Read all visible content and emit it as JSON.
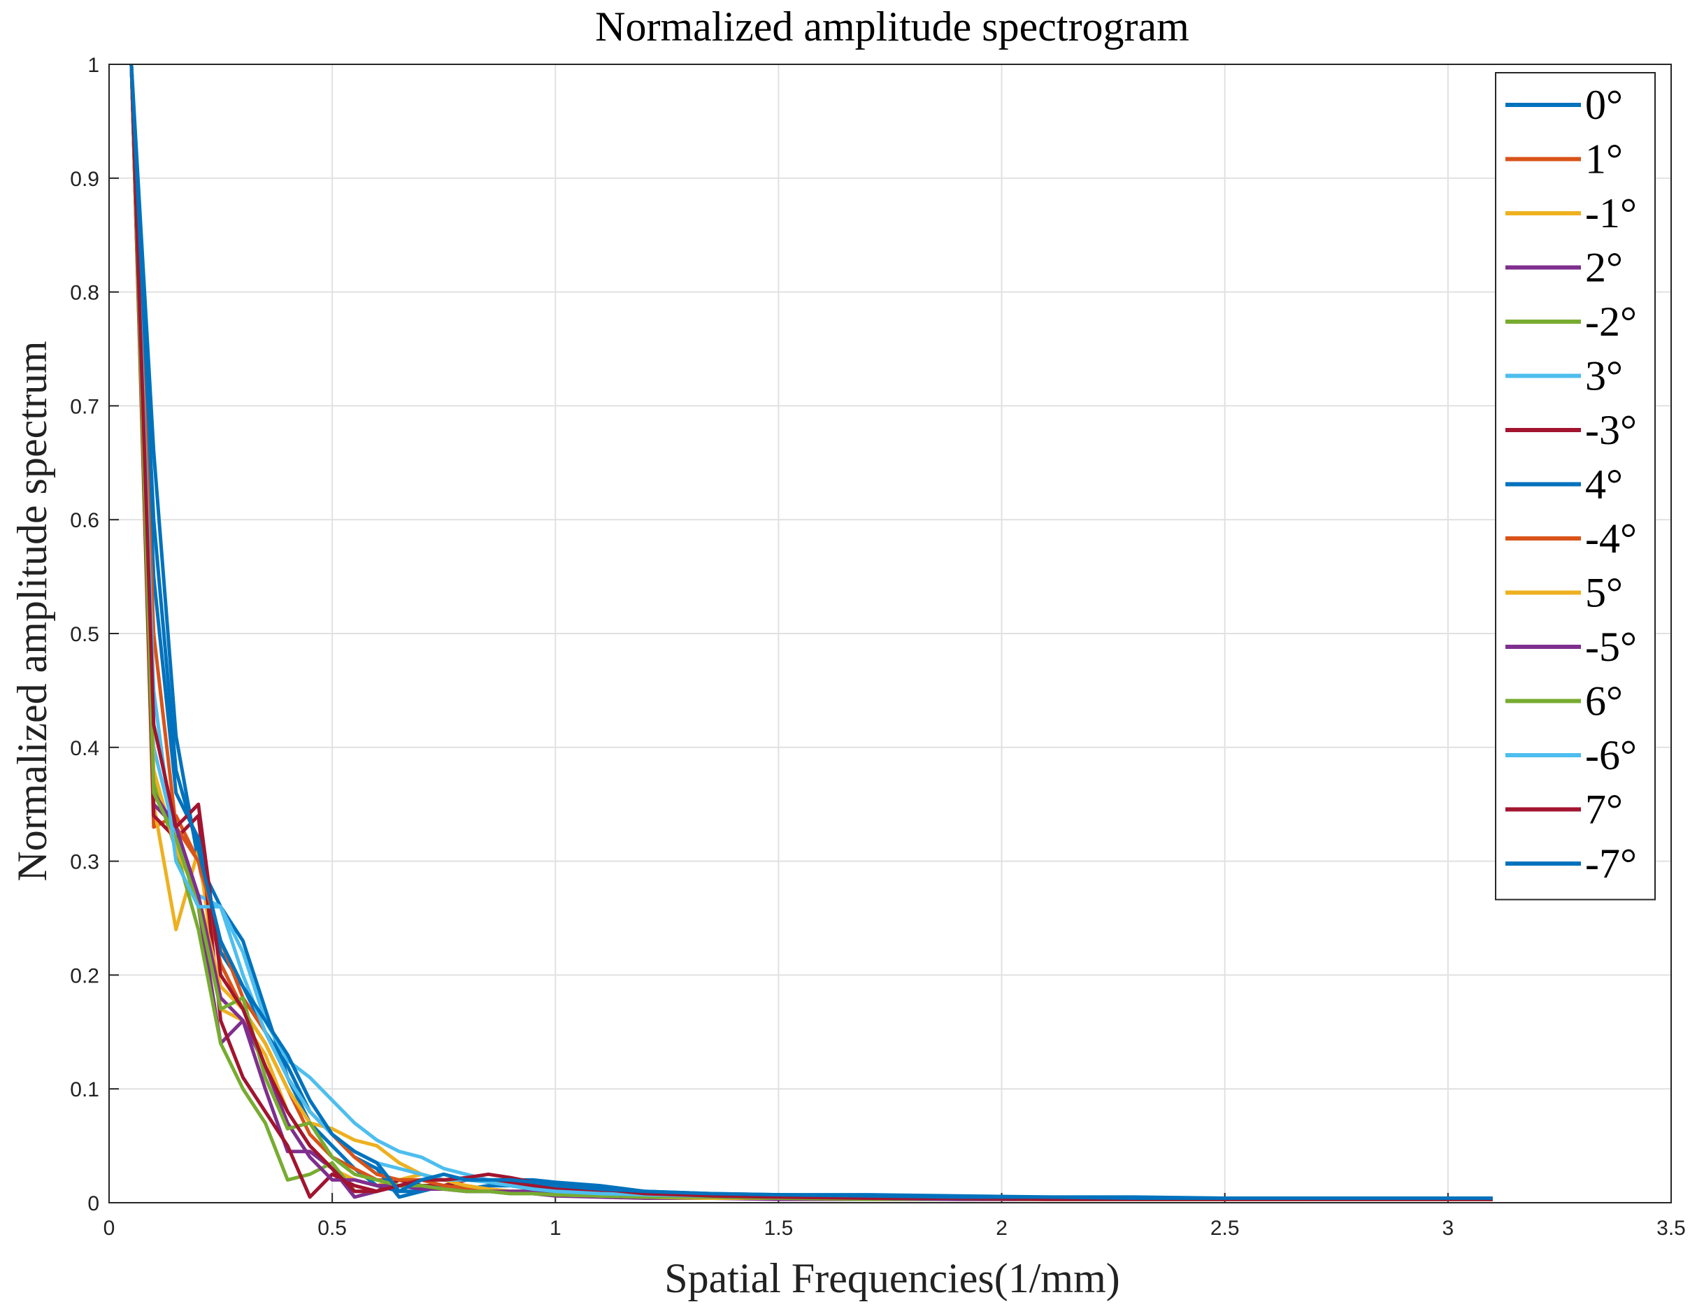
{
  "chart_data": {
    "type": "line",
    "title": "Normalized amplitude spectrogram",
    "xlabel": "Spatial Frequencies(1/mm)",
    "ylabel": "Normalized amplitude spectrum",
    "xlim": [
      0,
      3.5
    ],
    "ylim": [
      0,
      1
    ],
    "xticks": [
      0,
      0.5,
      1,
      1.5,
      2,
      2.5,
      3,
      3.5
    ],
    "yticks": [
      0,
      0.1,
      0.2,
      0.3,
      0.4,
      0.5,
      0.6,
      0.7,
      0.8,
      0.9,
      1
    ],
    "xtick_labels": [
      "0",
      "0.5",
      "1",
      "1.5",
      "2",
      "2.5",
      "3",
      "3.5"
    ],
    "ytick_labels": [
      "0",
      "0.1",
      "0.2",
      "0.3",
      "0.4",
      "0.5",
      "0.6",
      "0.7",
      "0.8",
      "0.9",
      "1"
    ],
    "grid": true,
    "legend_position": "top-right",
    "x": [
      0.05,
      0.1,
      0.15,
      0.2,
      0.25,
      0.3,
      0.35,
      0.4,
      0.45,
      0.5,
      0.55,
      0.6,
      0.65,
      0.7,
      0.75,
      0.8,
      0.85,
      0.9,
      0.95,
      1.0,
      1.1,
      1.2,
      1.35,
      1.5,
      1.7,
      1.9,
      2.1,
      2.3,
      2.5,
      2.7,
      2.9,
      3.1
    ],
    "series": [
      {
        "name": "0°",
        "color": "#0072BD",
        "values": [
          1.0,
          0.66,
          0.41,
          0.3,
          0.26,
          0.23,
          0.17,
          0.11,
          0.07,
          0.05,
          0.03,
          0.015,
          0.01,
          0.01,
          0.015,
          0.02,
          0.02,
          0.02,
          0.02,
          0.018,
          0.015,
          0.01,
          0.008,
          0.007,
          0.007,
          0.006,
          0.005,
          0.005,
          0.004,
          0.004,
          0.004,
          0.004
        ]
      },
      {
        "name": "1°",
        "color": "#D95319",
        "values": [
          1.0,
          0.33,
          0.34,
          0.3,
          0.21,
          0.17,
          0.14,
          0.1,
          0.06,
          0.04,
          0.03,
          0.02,
          0.02,
          0.015,
          0.015,
          0.015,
          0.012,
          0.01,
          0.01,
          0.01,
          0.008,
          0.006,
          0.005,
          0.005,
          0.004,
          0.004,
          0.004,
          0.003,
          0.003,
          0.003,
          0.003,
          0.003
        ]
      },
      {
        "name": "-1°",
        "color": "#EDB120",
        "values": [
          1.0,
          0.35,
          0.24,
          0.31,
          0.17,
          0.16,
          0.13,
          0.08,
          0.05,
          0.03,
          0.02,
          0.015,
          0.02,
          0.025,
          0.02,
          0.015,
          0.01,
          0.01,
          0.008,
          0.008,
          0.006,
          0.005,
          0.004,
          0.004,
          0.004,
          0.003,
          0.003,
          0.003,
          0.003,
          0.003,
          0.003,
          0.003
        ]
      },
      {
        "name": "2°",
        "color": "#7E2F8E",
        "values": [
          1.0,
          0.35,
          0.33,
          0.26,
          0.14,
          0.16,
          0.1,
          0.045,
          0.045,
          0.03,
          0.005,
          0.01,
          0.015,
          0.015,
          0.012,
          0.01,
          0.01,
          0.008,
          0.008,
          0.006,
          0.005,
          0.004,
          0.004,
          0.003,
          0.003,
          0.003,
          0.003,
          0.003,
          0.003,
          0.003,
          0.003,
          0.003
        ]
      },
      {
        "name": "-2°",
        "color": "#77AC30",
        "values": [
          1.0,
          0.37,
          0.31,
          0.24,
          0.14,
          0.1,
          0.07,
          0.02,
          0.025,
          0.035,
          0.01,
          0.01,
          0.02,
          0.015,
          0.015,
          0.012,
          0.01,
          0.01,
          0.008,
          0.008,
          0.006,
          0.005,
          0.004,
          0.004,
          0.003,
          0.003,
          0.003,
          0.003,
          0.003,
          0.003,
          0.003,
          0.003
        ]
      },
      {
        "name": "3°",
        "color": "#4DBEEE",
        "values": [
          1.0,
          0.4,
          0.32,
          0.27,
          0.26,
          0.22,
          0.16,
          0.125,
          0.11,
          0.09,
          0.07,
          0.055,
          0.045,
          0.04,
          0.03,
          0.025,
          0.02,
          0.015,
          0.012,
          0.01,
          0.008,
          0.007,
          0.006,
          0.005,
          0.005,
          0.004,
          0.004,
          0.004,
          0.004,
          0.004,
          0.004,
          0.004
        ]
      },
      {
        "name": "-3°",
        "color": "#A2142F",
        "values": [
          1.0,
          0.34,
          0.32,
          0.34,
          0.16,
          0.11,
          0.08,
          0.05,
          0.005,
          0.025,
          0.015,
          0.01,
          0.02,
          0.015,
          0.015,
          0.02,
          0.02,
          0.018,
          0.015,
          0.012,
          0.01,
          0.008,
          0.006,
          0.005,
          0.005,
          0.004,
          0.004,
          0.004,
          0.003,
          0.003,
          0.003,
          0.003
        ]
      },
      {
        "name": "4°",
        "color": "#0072BD",
        "values": [
          1.0,
          0.55,
          0.36,
          0.32,
          0.22,
          0.19,
          0.15,
          0.12,
          0.08,
          0.06,
          0.04,
          0.03,
          0.005,
          0.01,
          0.015,
          0.012,
          0.015,
          0.015,
          0.012,
          0.01,
          0.008,
          0.007,
          0.006,
          0.005,
          0.005,
          0.004,
          0.004,
          0.004,
          0.004,
          0.003,
          0.003,
          0.003
        ]
      },
      {
        "name": "-4°",
        "color": "#D95319",
        "values": [
          1.0,
          0.5,
          0.33,
          0.3,
          0.23,
          0.18,
          0.15,
          0.11,
          0.08,
          0.06,
          0.04,
          0.025,
          0.02,
          0.02,
          0.015,
          0.012,
          0.012,
          0.01,
          0.01,
          0.008,
          0.007,
          0.006,
          0.005,
          0.004,
          0.004,
          0.004,
          0.003,
          0.003,
          0.003,
          0.003,
          0.003,
          0.003
        ]
      },
      {
        "name": "5°",
        "color": "#EDB120",
        "values": [
          1.0,
          0.38,
          0.31,
          0.27,
          0.19,
          0.17,
          0.14,
          0.1,
          0.07,
          0.065,
          0.055,
          0.05,
          0.035,
          0.025,
          0.02,
          0.015,
          0.012,
          0.01,
          0.008,
          0.007,
          0.006,
          0.005,
          0.004,
          0.004,
          0.004,
          0.003,
          0.003,
          0.003,
          0.003,
          0.003,
          0.003,
          0.003
        ]
      },
      {
        "name": "-5°",
        "color": "#7E2F8E",
        "values": [
          1.0,
          0.36,
          0.33,
          0.27,
          0.18,
          0.16,
          0.12,
          0.07,
          0.04,
          0.02,
          0.02,
          0.015,
          0.015,
          0.012,
          0.012,
          0.01,
          0.01,
          0.01,
          0.01,
          0.01,
          0.008,
          0.006,
          0.005,
          0.004,
          0.004,
          0.003,
          0.003,
          0.003,
          0.003,
          0.003,
          0.003,
          0.003
        ]
      },
      {
        "name": "6°",
        "color": "#77AC30",
        "values": [
          1.0,
          0.36,
          0.32,
          0.26,
          0.17,
          0.18,
          0.11,
          0.065,
          0.07,
          0.04,
          0.025,
          0.02,
          0.015,
          0.015,
          0.012,
          0.01,
          0.01,
          0.008,
          0.008,
          0.007,
          0.006,
          0.005,
          0.005,
          0.004,
          0.004,
          0.004,
          0.003,
          0.003,
          0.003,
          0.003,
          0.003,
          0.003
        ]
      },
      {
        "name": "-6°",
        "color": "#4DBEEE",
        "values": [
          1.0,
          0.45,
          0.3,
          0.26,
          0.26,
          0.2,
          0.15,
          0.11,
          0.08,
          0.06,
          0.045,
          0.035,
          0.03,
          0.025,
          0.02,
          0.02,
          0.018,
          0.015,
          0.012,
          0.01,
          0.008,
          0.007,
          0.006,
          0.005,
          0.005,
          0.004,
          0.004,
          0.004,
          0.004,
          0.004,
          0.004,
          0.004
        ]
      },
      {
        "name": "7°",
        "color": "#A2142F",
        "values": [
          1.0,
          0.42,
          0.33,
          0.35,
          0.2,
          0.17,
          0.12,
          0.08,
          0.05,
          0.03,
          0.01,
          0.01,
          0.015,
          0.02,
          0.02,
          0.022,
          0.025,
          0.022,
          0.018,
          0.015,
          0.012,
          0.008,
          0.006,
          0.005,
          0.004,
          0.004,
          0.003,
          0.003,
          0.003,
          0.003,
          0.003,
          0.003
        ]
      },
      {
        "name": "-7°",
        "color": "#0072BD",
        "values": [
          1.0,
          0.6,
          0.38,
          0.31,
          0.23,
          0.19,
          0.16,
          0.13,
          0.09,
          0.06,
          0.045,
          0.035,
          0.01,
          0.02,
          0.025,
          0.02,
          0.02,
          0.02,
          0.018,
          0.015,
          0.012,
          0.01,
          0.008,
          0.007,
          0.006,
          0.005,
          0.005,
          0.004,
          0.004,
          0.004,
          0.004,
          0.004
        ]
      }
    ]
  }
}
